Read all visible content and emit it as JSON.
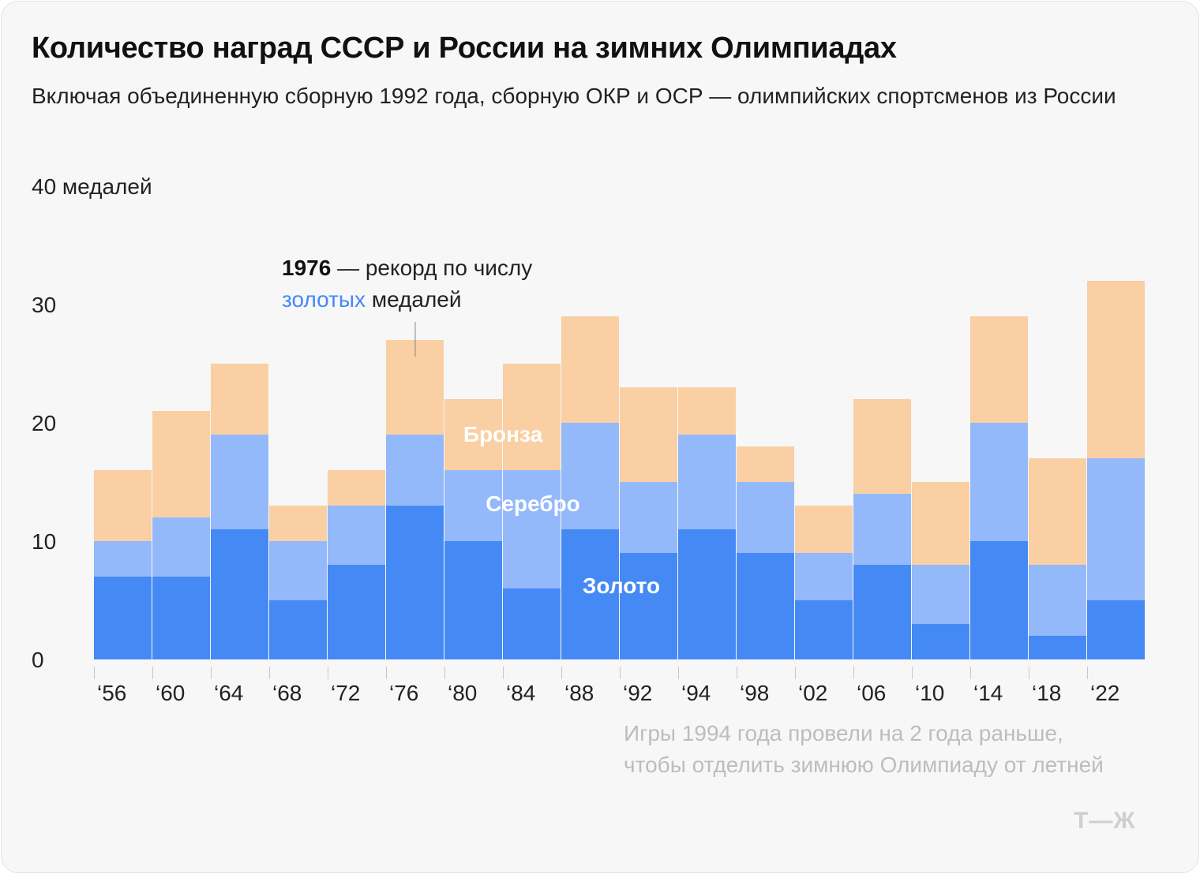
{
  "title": "Количество наград СССР и России на зимних Олимпиадах",
  "subtitle": "Включая объединенную сборную 1992 года, сборную ОКР и ОСР — олимпийских спортсменов из России",
  "annotation": {
    "bold": "1976",
    "rest": " — рекорд по числу",
    "highlight": "золотых",
    "tail": " медалей"
  },
  "note": [
    "Игры 1994 года провели на 2 года раньше,",
    "чтобы отделить зимнюю Олимпиаду от летней"
  ],
  "logo": "т—ж",
  "colors": {
    "gold": "#4589f5",
    "silver": "#93b9fb",
    "bronze": "#f9cfa3",
    "highlight": "#4589f5"
  },
  "chart_data": {
    "type": "bar",
    "stacked": true,
    "title": "Количество наград СССР и России на зимних Олимпиадах",
    "ylabel": "медалей",
    "ylim": [
      0,
      40
    ],
    "yticks": [
      0,
      10,
      20,
      30,
      40
    ],
    "ytick_labels": [
      "0",
      "10",
      "20",
      "30",
      "40 медалей"
    ],
    "categories": [
      "‘56",
      "‘60",
      "‘64",
      "‘68",
      "‘72",
      "‘76",
      "‘80",
      "‘84",
      "‘88",
      "‘92",
      "‘94",
      "‘98",
      "‘02",
      "‘06",
      "‘10",
      "‘14",
      "‘18",
      "‘22"
    ],
    "series": [
      {
        "name": "Золото",
        "values": [
          7,
          7,
          11,
          5,
          8,
          13,
          10,
          6,
          11,
          9,
          11,
          9,
          5,
          8,
          3,
          10,
          2,
          5
        ]
      },
      {
        "name": "Серебро",
        "values": [
          3,
          5,
          8,
          5,
          5,
          6,
          6,
          10,
          9,
          6,
          8,
          6,
          4,
          6,
          5,
          10,
          6,
          12
        ]
      },
      {
        "name": "Бронза",
        "values": [
          6,
          9,
          6,
          3,
          3,
          8,
          6,
          9,
          9,
          8,
          4,
          3,
          4,
          8,
          7,
          9,
          9,
          15
        ]
      }
    ]
  }
}
